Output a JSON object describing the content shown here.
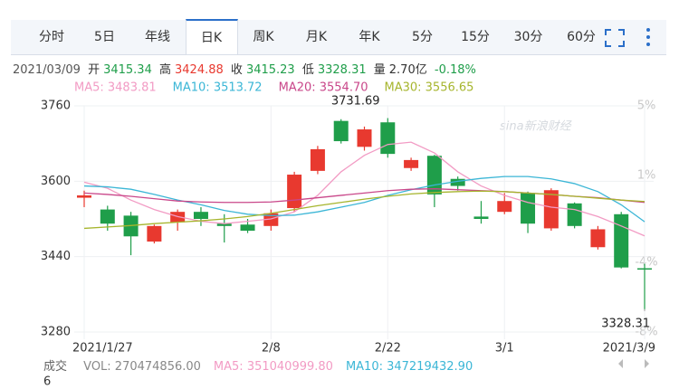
{
  "tabs": [
    "分时",
    "5日",
    "年线",
    "日K",
    "周K",
    "月K",
    "年K",
    "5分",
    "15分",
    "30分",
    "60分"
  ],
  "selected_tab": 3,
  "quote": {
    "date": "2021/03/09",
    "labels": [
      "开",
      "高",
      "收",
      "低",
      "量"
    ],
    "volume": "2.70亿",
    "change": "-0.18%"
  },
  "chart_data": {
    "type": "candlestick",
    "categories": [
      "2021/1/27",
      null,
      null,
      null,
      null,
      null,
      null,
      null,
      "2/8",
      null,
      null,
      null,
      null,
      "2/22",
      null,
      null,
      null,
      null,
      "3/1",
      null,
      null,
      null,
      null,
      null,
      "2021/3/9"
    ],
    "open": [
      3565,
      3540,
      3527,
      3472,
      3513,
      3535,
      3510,
      3508,
      3505,
      3543,
      3622,
      3728,
      3673,
      3725,
      3628,
      3654,
      3605,
      3525,
      3535,
      3575,
      3500,
      3553,
      3460,
      3530,
      3415.34
    ],
    "high": [
      3580,
      3548,
      3535,
      3508,
      3540,
      3545,
      3530,
      3520,
      3540,
      3620,
      3675,
      3731.69,
      3716,
      3734,
      3650,
      3656,
      3610,
      3558,
      3575,
      3578,
      3585,
      3555,
      3505,
      3535,
      3424.88
    ],
    "low": [
      3545,
      3495,
      3443,
      3468,
      3495,
      3505,
      3470,
      3490,
      3495,
      3535,
      3615,
      3680,
      3665,
      3650,
      3622,
      3545,
      3580,
      3510,
      3530,
      3490,
      3495,
      3500,
      3455,
      3415,
      3328.31
    ],
    "close": [
      3570,
      3510,
      3483,
      3505,
      3535,
      3520,
      3505,
      3495,
      3532,
      3614,
      3668,
      3685,
      3710,
      3658,
      3645,
      3572,
      3590,
      3520,
      3558,
      3510,
      3581,
      3505,
      3498,
      3417,
      3415.23
    ],
    "up_color": "#e8392f",
    "down_color": "#1f9e4a",
    "series": [
      {
        "name": "MA5: 3483.81",
        "color": "#f29bc4",
        "values": [
          3598,
          3585,
          3560,
          3540,
          3525,
          3515,
          3510,
          3515,
          3520,
          3535,
          3570,
          3620,
          3655,
          3678,
          3683,
          3660,
          3620,
          3590,
          3570,
          3555,
          3545,
          3540,
          3525,
          3505,
          3484
        ]
      },
      {
        "name": "MA10: 3513.72",
        "color": "#3bb6d6",
        "values": [
          3590,
          3588,
          3583,
          3572,
          3560,
          3550,
          3538,
          3530,
          3527,
          3528,
          3535,
          3545,
          3555,
          3570,
          3582,
          3592,
          3600,
          3606,
          3610,
          3610,
          3605,
          3595,
          3578,
          3550,
          3514
        ]
      },
      {
        "name": "MA20: 3554.70",
        "color": "#c9478a",
        "values": [
          3575,
          3572,
          3568,
          3563,
          3558,
          3556,
          3555,
          3555,
          3556,
          3560,
          3565,
          3570,
          3575,
          3580,
          3583,
          3584,
          3582,
          3580,
          3578,
          3575,
          3572,
          3568,
          3565,
          3560,
          3555
        ]
      },
      {
        "name": "MA30: 3556.65",
        "color": "#a6b52d",
        "values": [
          3500,
          3503,
          3506,
          3510,
          3513,
          3516,
          3520,
          3525,
          3532,
          3540,
          3548,
          3555,
          3562,
          3568,
          3573,
          3576,
          3578,
          3579,
          3578,
          3575,
          3572,
          3568,
          3564,
          3560,
          3557
        ]
      }
    ],
    "ylim": [
      3280,
      3760
    ],
    "yticks": [
      3760,
      3600,
      3440,
      3280
    ],
    "y2lim": [
      -8,
      5
    ],
    "y2ticks": [
      {
        "value": 5,
        "label": "5%"
      },
      {
        "value": 1,
        "label": "1%"
      },
      {
        "value": -4,
        "label": "-4%"
      },
      {
        "value": -8,
        "label": "-8%"
      }
    ],
    "grid": true,
    "high_label_index": 11,
    "low_label_index": 24
  },
  "volume": {
    "title": "成交",
    "items": [
      "VOL: 270474856.00",
      "MA5: 351040999.80",
      "MA10: 347219432.90"
    ],
    "axis_label": "6"
  },
  "watermark": "sina新浪财经"
}
